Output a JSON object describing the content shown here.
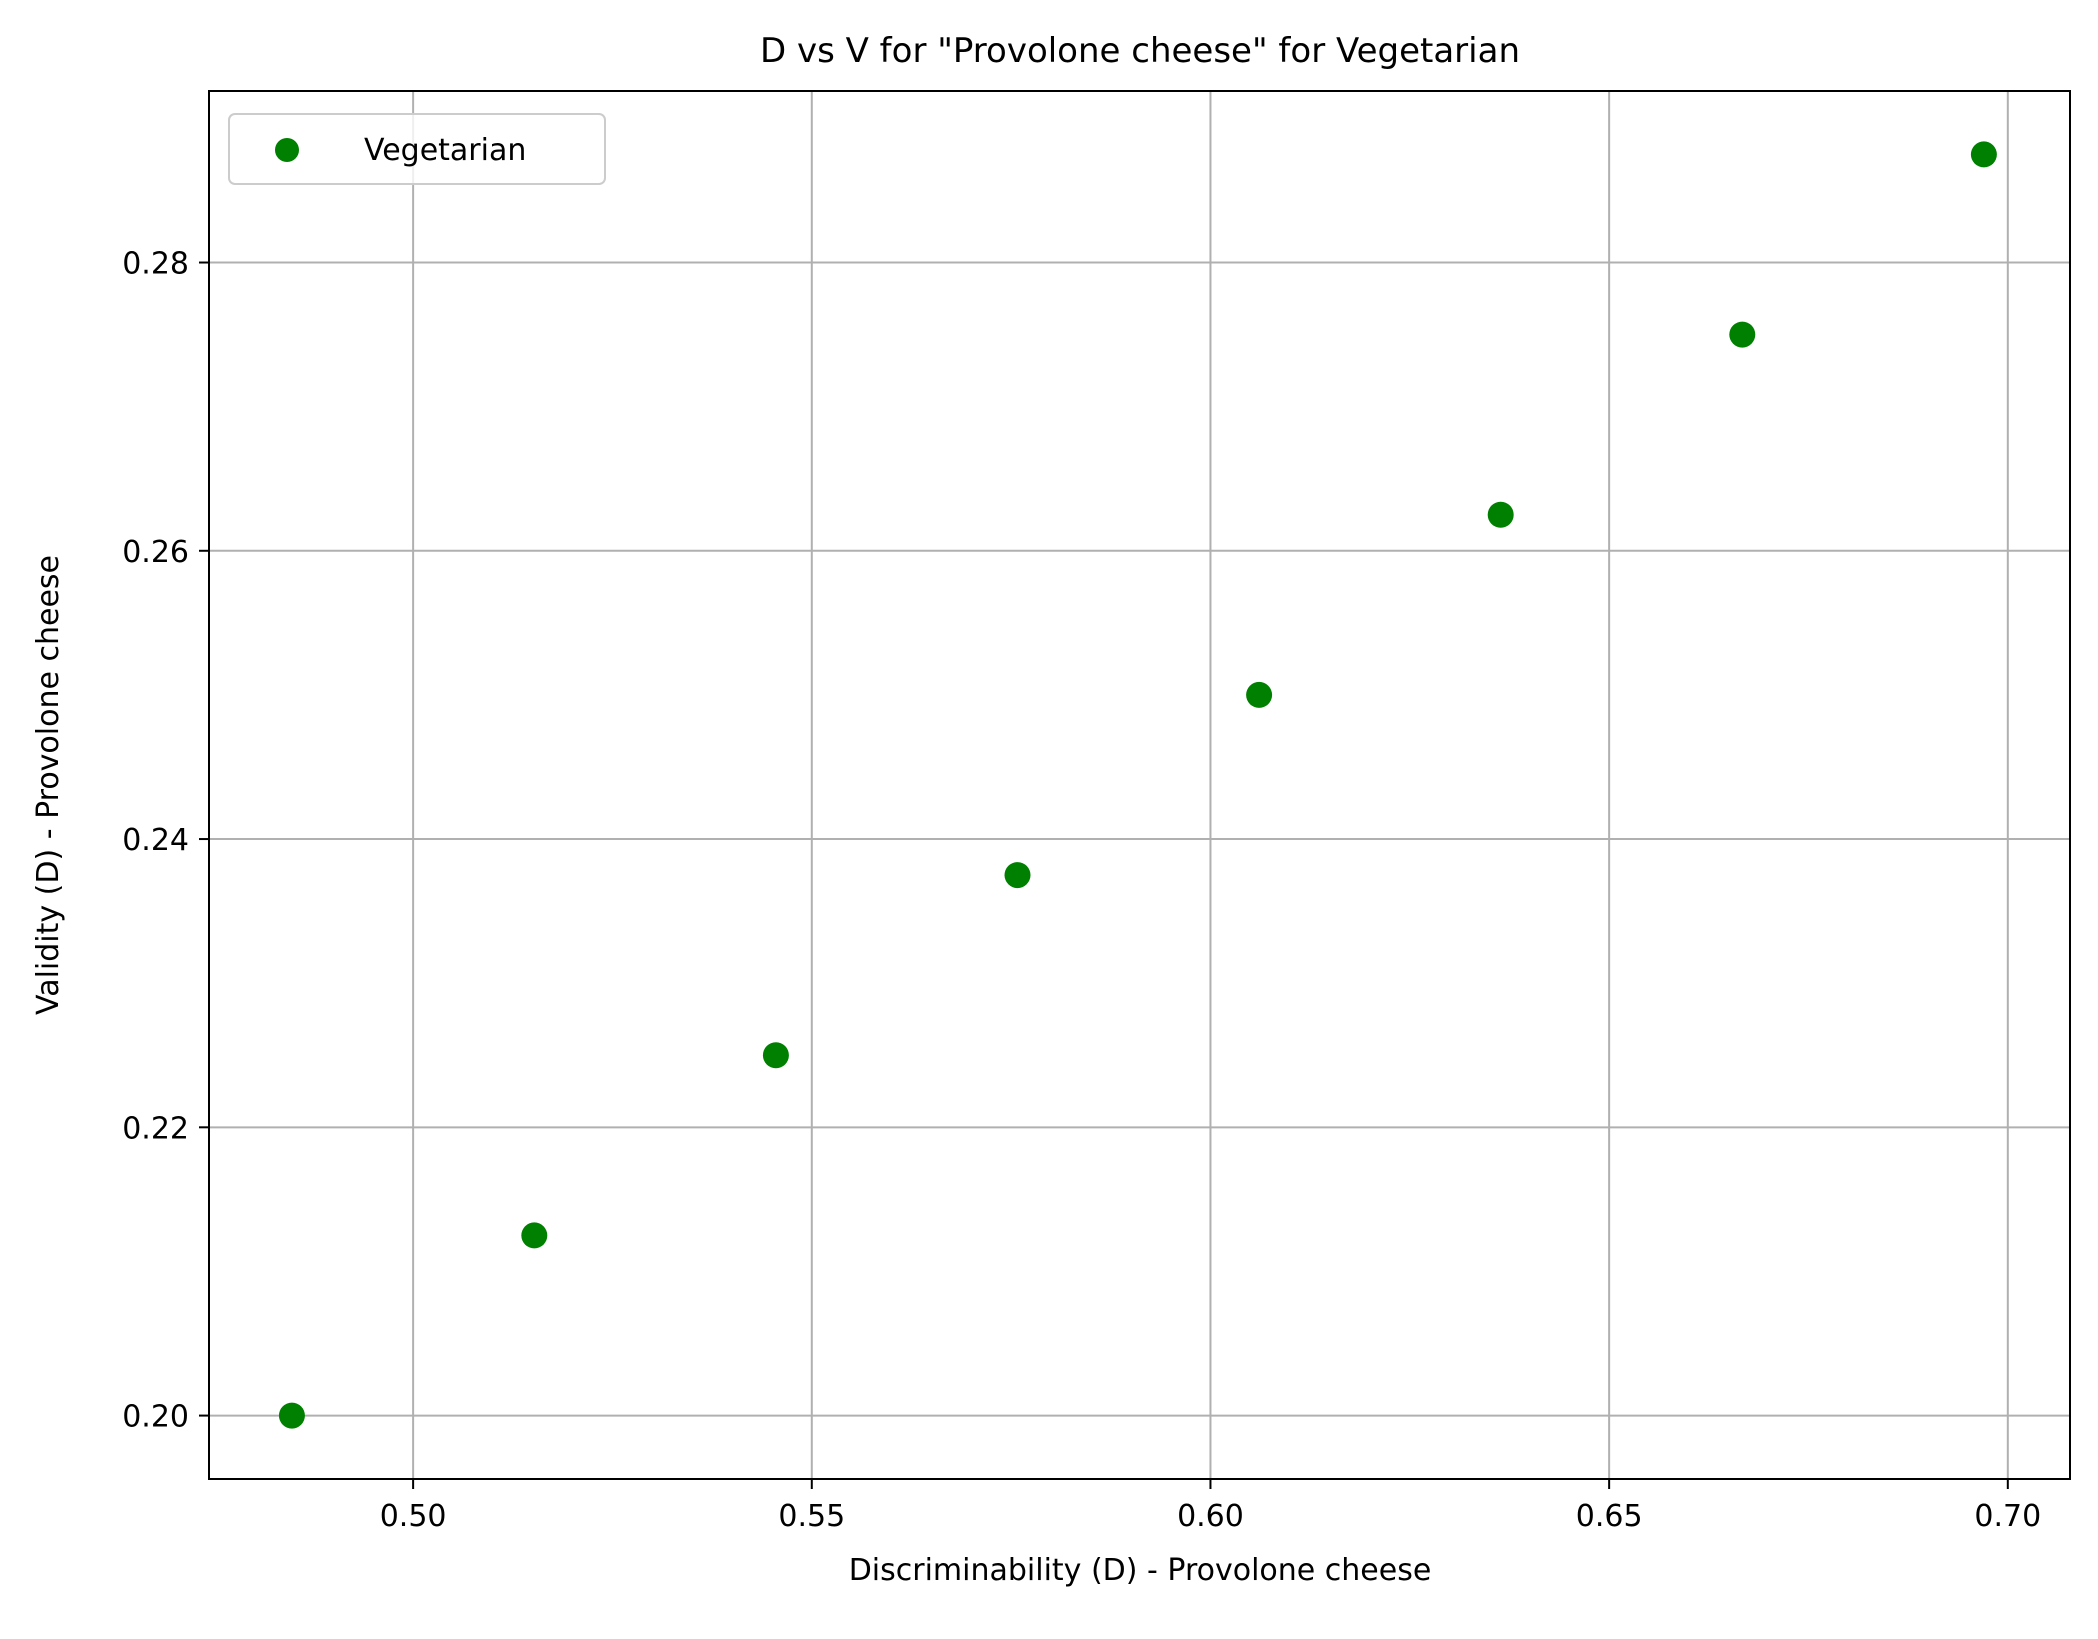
{
  "chart_data": {
    "type": "scatter",
    "title": "D vs V for \"Provolone cheese\" for Vegetarian",
    "xlabel": "Discriminability (D) - Provolone cheese",
    "ylabel": "Validity (D) - Provolone cheese",
    "xlim": [
      0.4744,
      0.7078
    ],
    "ylim": [
      0.1956,
      0.2919
    ],
    "xticks": [
      0.5,
      0.55,
      0.6,
      0.65,
      0.7
    ],
    "xtick_labels": [
      "0.50",
      "0.55",
      "0.60",
      "0.65",
      "0.70"
    ],
    "yticks": [
      0.2,
      0.22,
      0.24,
      0.26,
      0.28
    ],
    "ytick_labels": [
      "0.20",
      "0.22",
      "0.24",
      "0.26",
      "0.28"
    ],
    "grid": true,
    "legend": {
      "position": "top-left"
    },
    "series": [
      {
        "name": "Vegetarian",
        "color": "#008000",
        "x": [
          0.4848,
          0.5152,
          0.5455,
          0.5758,
          0.6061,
          0.6364,
          0.6667,
          0.697
        ],
        "y": [
          0.2,
          0.2125,
          0.225,
          0.2375,
          0.25,
          0.2625,
          0.275,
          0.2875
        ]
      }
    ]
  }
}
